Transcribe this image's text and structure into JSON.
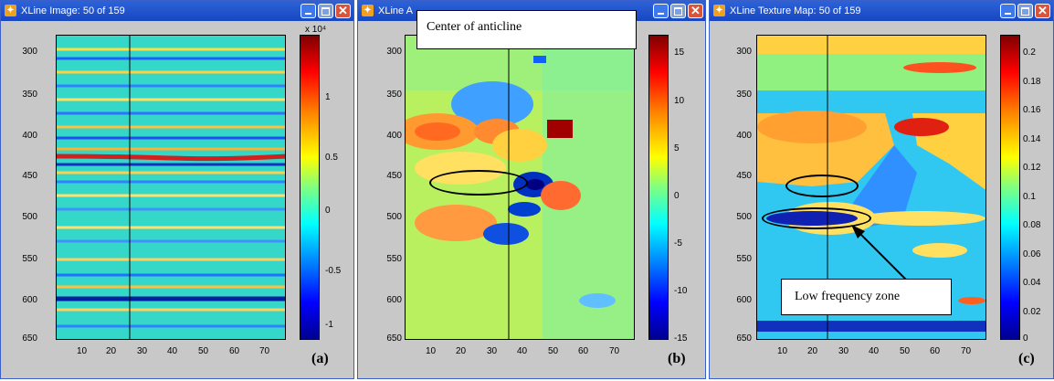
{
  "windows": [
    {
      "title": "XLine Image: 50 of 159",
      "panel": "(a)",
      "yticks": [
        "300",
        "350",
        "400",
        "450",
        "500",
        "550",
        "600",
        "650"
      ],
      "xticks": [
        "10",
        "20",
        "30",
        "40",
        "50",
        "60",
        "70"
      ],
      "cticks": [
        "1",
        "0.5",
        "0",
        "-0.5",
        "-1"
      ],
      "cexp": "x 10⁴"
    },
    {
      "title": "XLine A",
      "panel": "(b)",
      "yticks": [
        "300",
        "350",
        "400",
        "450",
        "500",
        "550",
        "600",
        "650"
      ],
      "xticks": [
        "10",
        "20",
        "30",
        "40",
        "50",
        "60",
        "70"
      ],
      "cticks": [
        "15",
        "10",
        "5",
        "0",
        "-5",
        "-10",
        "-15"
      ],
      "callout": "Center of anticline"
    },
    {
      "title": "XLine Texture Map: 50 of 159",
      "panel": "(c)",
      "yticks": [
        "300",
        "350",
        "400",
        "450",
        "500",
        "550",
        "600",
        "650"
      ],
      "xticks": [
        "10",
        "20",
        "30",
        "40",
        "50",
        "60",
        "70"
      ],
      "cticks": [
        "0.2",
        "0.18",
        "0.16",
        "0.14",
        "0.12",
        "0.1",
        "0.08",
        "0.06",
        "0.04",
        "0.02",
        "0"
      ],
      "callout": "Low frequency zone"
    }
  ],
  "colors": {
    "titlebar": "#1f52cf",
    "frame": "#c8c8c8"
  },
  "icons": [
    "matlab-icon",
    "minimize-icon",
    "maximize-icon",
    "close-icon"
  ]
}
